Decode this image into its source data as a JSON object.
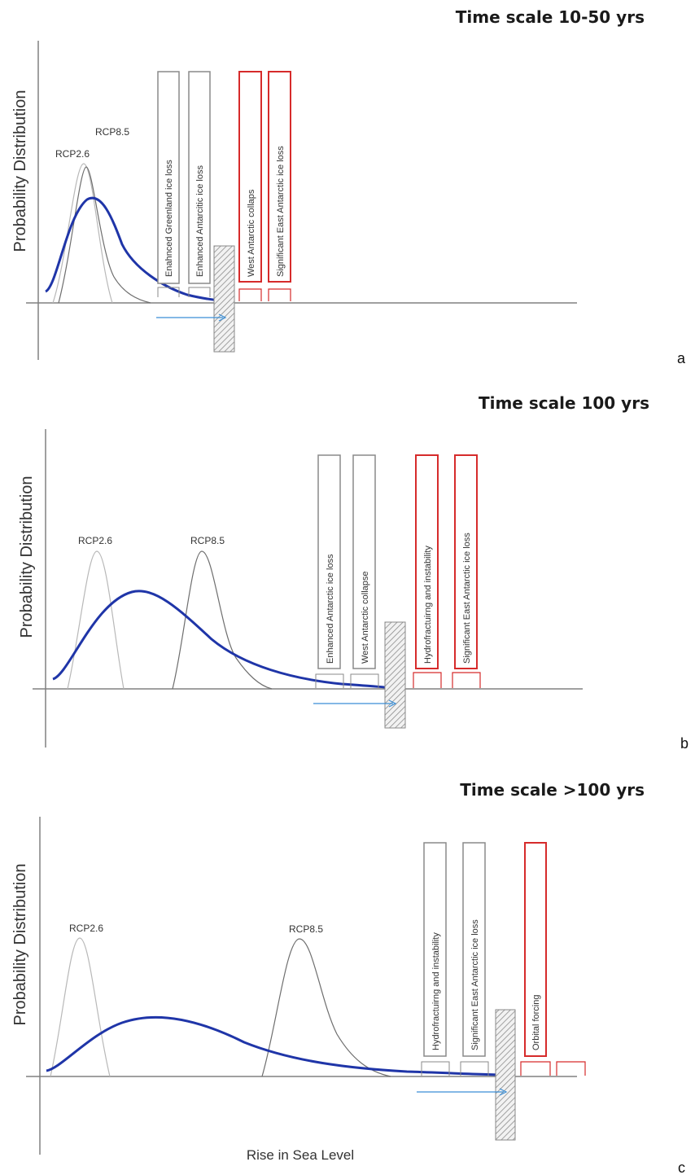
{
  "colors": {
    "main_curve": "#1f35a8",
    "rcp26_curve": "#b8b8b8",
    "rcp85_curve": "#6e6e6e",
    "axis": "#808080",
    "box_neutral": "#8a8a8a",
    "box_highlight": "#d62b2b",
    "arrow": "#3a8ed6",
    "hatch": "#9a9a9a"
  },
  "panels": [
    {
      "title": "Time scale 10-50 yrs",
      "letter": "a",
      "ylabel": "Probability Distribution",
      "xlabel": "",
      "curve_labels": [
        "RCP2.6",
        "RCP8.5"
      ],
      "boxes": [
        {
          "label": "Enahnced Greenland ice loss",
          "highlight": false
        },
        {
          "label": "Enhanced Antarcitic ice loss",
          "highlight": false
        },
        {
          "label": "West Antarctic collaps",
          "highlight": true
        },
        {
          "label": "Significant East Antarctic ice loss",
          "highlight": true
        }
      ]
    },
    {
      "title": "Time scale 100 yrs",
      "letter": "b",
      "ylabel": "Probability Distribution",
      "xlabel": "",
      "curve_labels": [
        "RCP2.6",
        "RCP8.5"
      ],
      "boxes": [
        {
          "label": "Enhanced Antarctic ice loss",
          "highlight": false
        },
        {
          "label": "West Antarctic collapse",
          "highlight": false
        },
        {
          "label": "Hydrofractuirng and instability",
          "highlight": true
        },
        {
          "label": "Significant East Antarctic ice loss",
          "highlight": true
        }
      ]
    },
    {
      "title": "Time scale >100 yrs",
      "letter": "c",
      "ylabel": "Probability Distribution",
      "xlabel": "Rise in Sea Level",
      "curve_labels": [
        "RCP2.6",
        "RCP8.5"
      ],
      "boxes": [
        {
          "label": "Hydrofractuirng and instability",
          "highlight": false
        },
        {
          "label": "Significant East Antarctic ice loss",
          "highlight": false
        },
        {
          "label": "Orbital forcing",
          "highlight": true
        },
        {
          "label": "",
          "highlight": true
        }
      ]
    }
  ]
}
